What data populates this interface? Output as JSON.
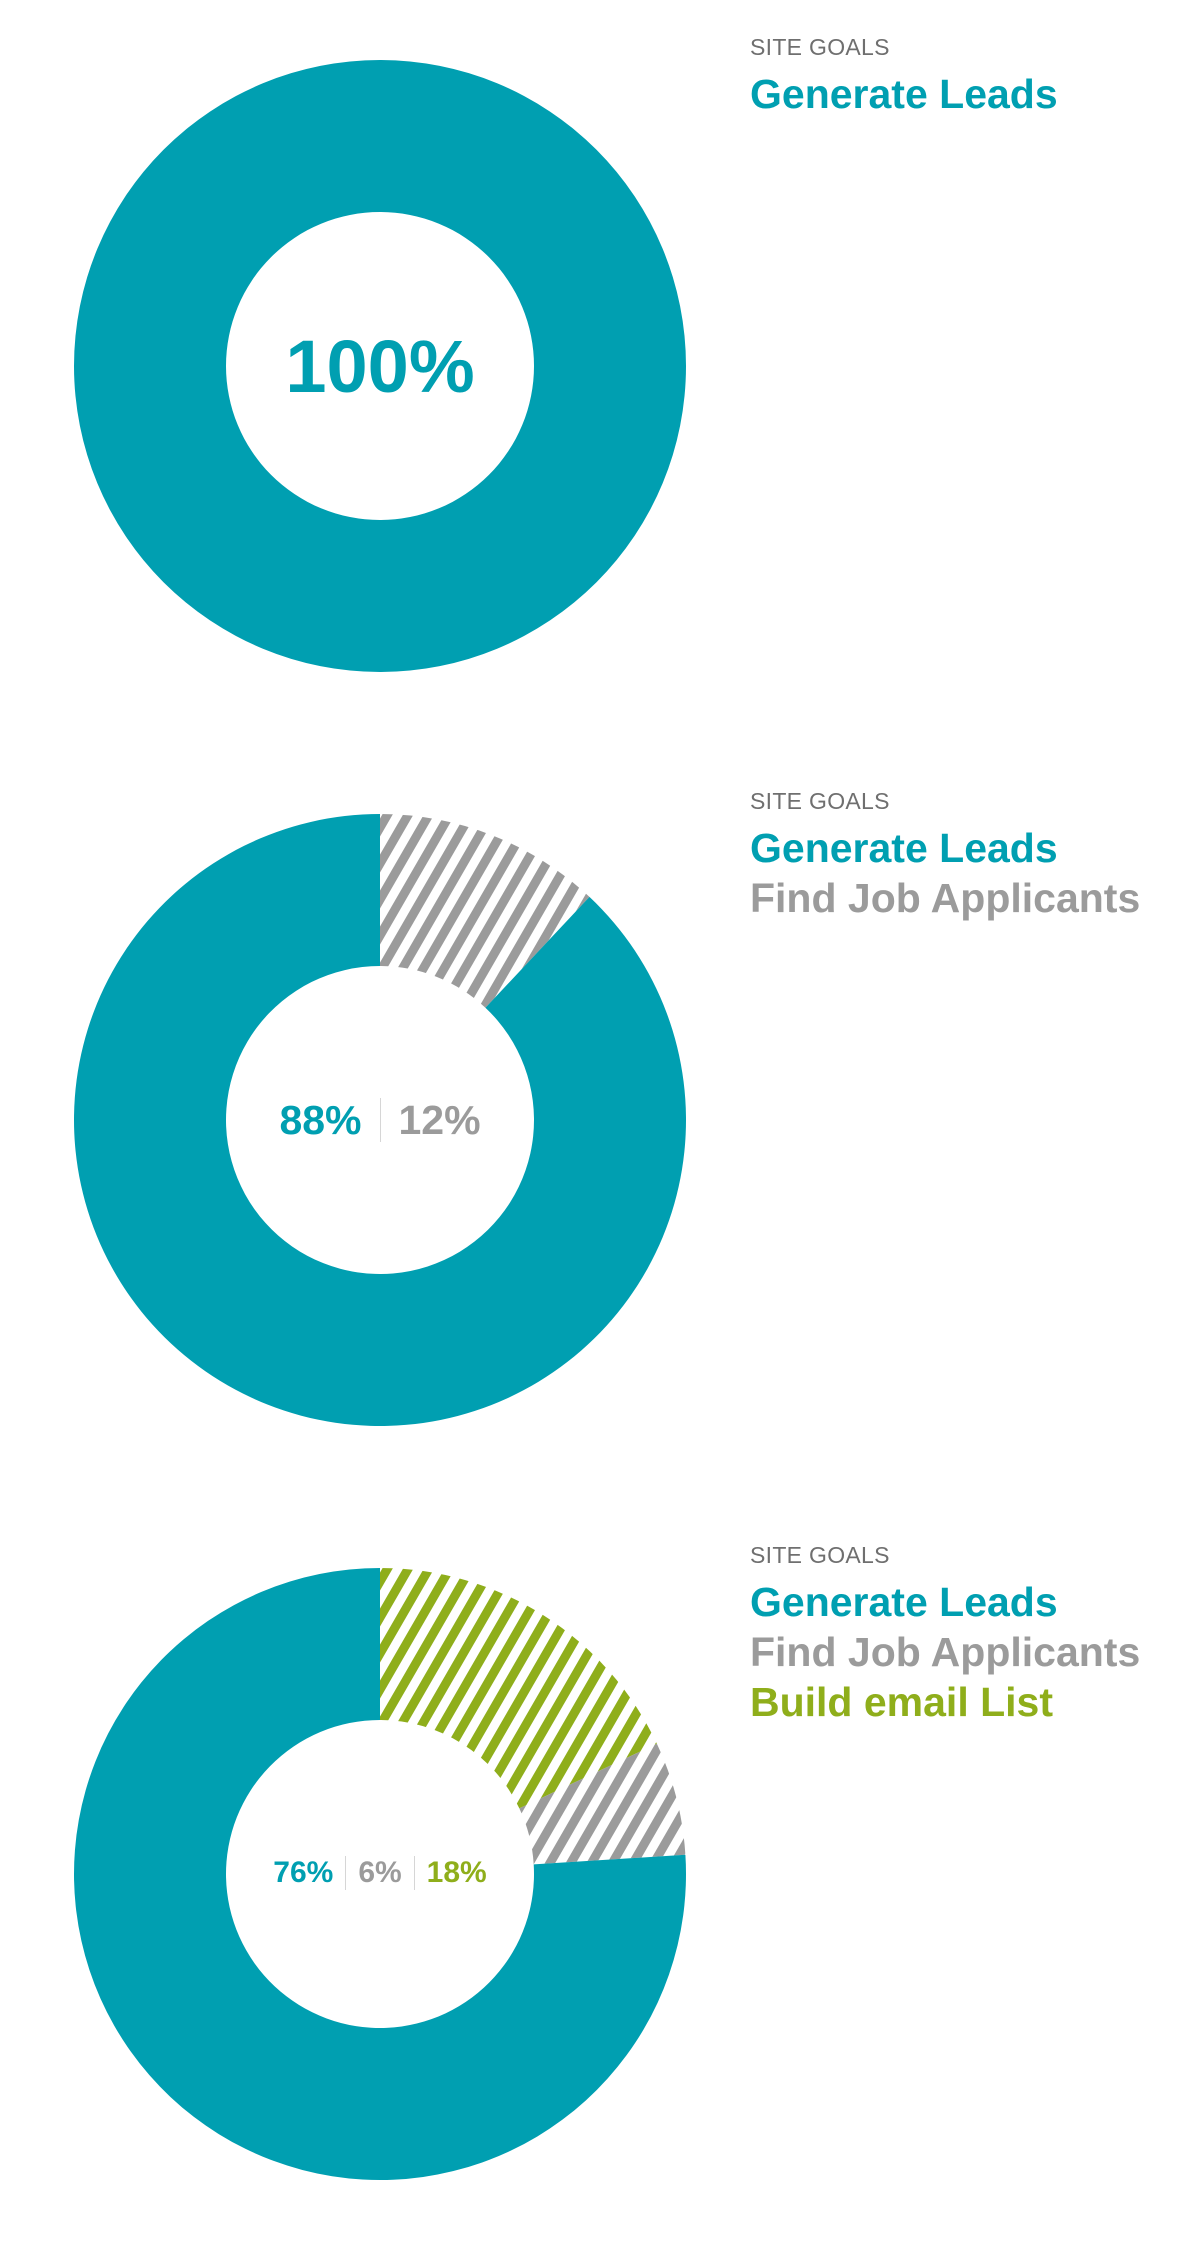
{
  "colors": {
    "leads": "#009fb1",
    "jobs": "#9b9b9b",
    "email": "#8fae1b"
  },
  "chart_data": [
    {
      "type": "pie",
      "donut": true,
      "legend_title": "SITE GOALS",
      "slices": [
        {
          "name": "Generate Leads",
          "value": 100,
          "label": "100%",
          "color": "#009fb1",
          "pattern": "solid"
        }
      ]
    },
    {
      "type": "pie",
      "donut": true,
      "legend_title": "SITE GOALS",
      "slices": [
        {
          "name": "Generate Leads",
          "value": 88,
          "label": "88%",
          "color": "#009fb1",
          "pattern": "solid"
        },
        {
          "name": "Find Job Applicants",
          "value": 12,
          "label": "12%",
          "color": "#9b9b9b",
          "pattern": "hatched"
        }
      ]
    },
    {
      "type": "pie",
      "donut": true,
      "legend_title": "SITE GOALS",
      "slices": [
        {
          "name": "Generate Leads",
          "value": 76,
          "label": "76%",
          "color": "#009fb1",
          "pattern": "solid"
        },
        {
          "name": "Find Job Applicants",
          "value": 6,
          "label": "6%",
          "color": "#9b9b9b",
          "pattern": "hatched"
        },
        {
          "name": "Build email List",
          "value": 18,
          "label": "18%",
          "color": "#8fae1b",
          "pattern": "hatched"
        }
      ]
    }
  ]
}
